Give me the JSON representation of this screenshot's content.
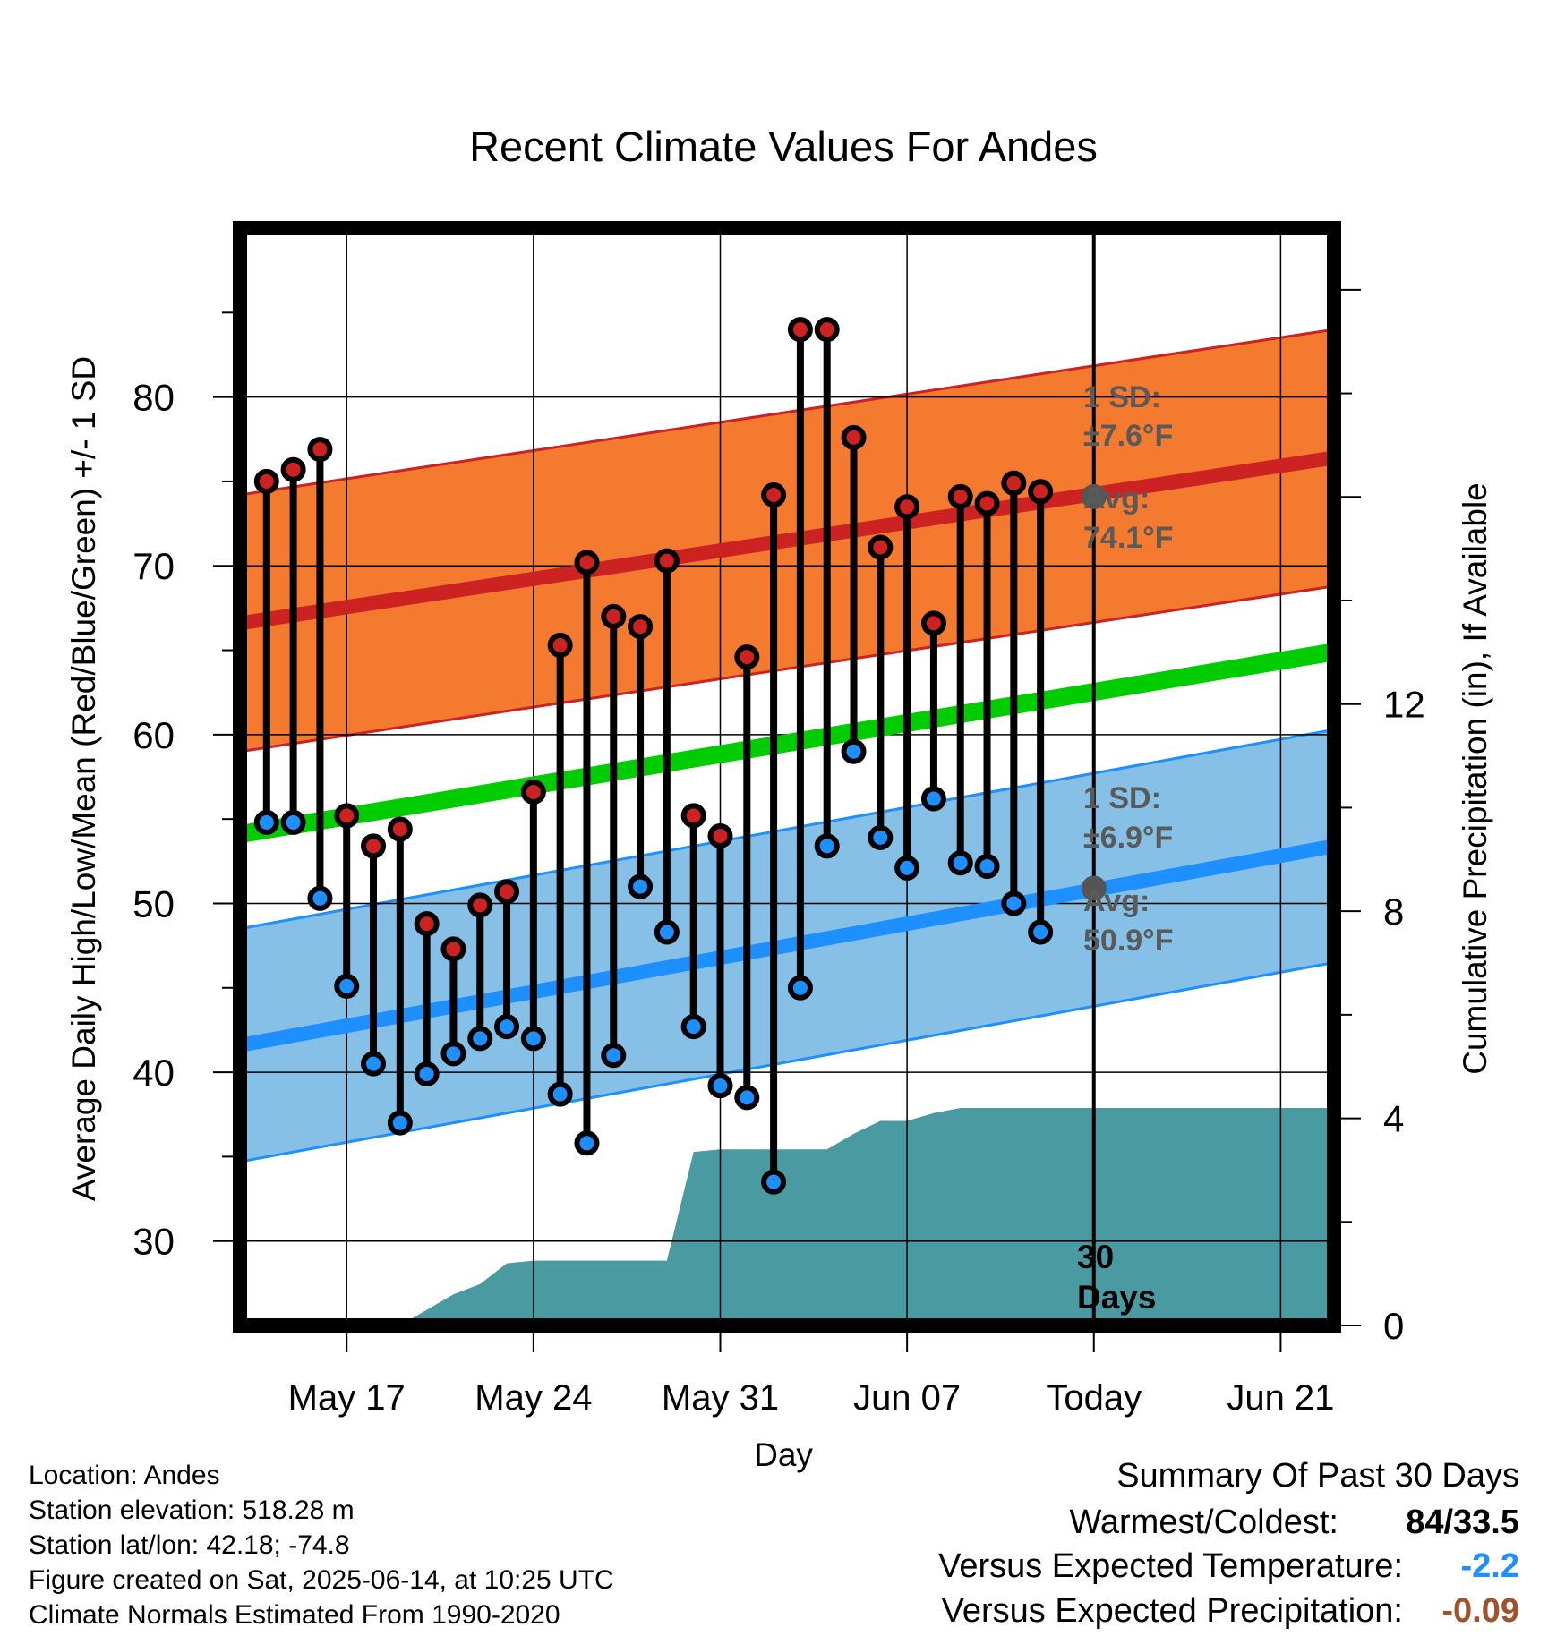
{
  "chart_data": {
    "type": "line",
    "title": "Recent Climate Values For Andes",
    "xlabel": "Day",
    "ylabel": "Average Daily High/Low/Mean (Red/Blue/Green) +/- 1 SD",
    "y2label": "Cumulative Precipitation (in), If Available",
    "ylim": [
      25,
      90
    ],
    "y2lim": [
      0,
      21.19
    ],
    "xlim": [
      "2025-05-13",
      "2025-06-23"
    ],
    "grid": true,
    "x_ticks": [
      {
        "date": "2025-05-17",
        "label": "May 17"
      },
      {
        "date": "2025-05-24",
        "label": "May 24"
      },
      {
        "date": "2025-05-31",
        "label": "May 31"
      },
      {
        "date": "2025-06-07",
        "label": "Jun 07"
      },
      {
        "date": "2025-06-14",
        "label": "Today"
      },
      {
        "date": "2025-06-21",
        "label": "Jun 21"
      }
    ],
    "y_ticks": [
      30,
      40,
      50,
      60,
      70,
      80
    ],
    "y_ticks_labels": [
      "30",
      "40",
      "50",
      "60",
      "70",
      "80"
    ],
    "y2_ticks": [
      0,
      4,
      8,
      12
    ],
    "y2_ticks_labels": [
      "0",
      "4",
      "8",
      "12"
    ],
    "today": "2025-06-14",
    "today_label_line1": "30",
    "today_label_line2": "Days",
    "normal_high": {
      "start": [
        "2025-05-13",
        66.6
      ],
      "end": [
        "2025-06-23",
        76.4
      ],
      "today": 74.1,
      "sd": 7.6,
      "color": "#cc2222",
      "band_color": "#f47a30"
    },
    "normal_low": {
      "start": [
        "2025-05-13",
        41.6
      ],
      "end": [
        "2025-06-23",
        53.4
      ],
      "today": 50.9,
      "sd": 6.9,
      "color": "#1e8fff",
      "band_color": "#86c0e6"
    },
    "normal_mean": {
      "start": [
        "2025-05-13",
        54.1
      ],
      "end": [
        "2025-06-23",
        64.9
      ],
      "color": "#00cc00"
    },
    "high_annotation": {
      "sd_line1": "1 SD:",
      "sd_line2": "±7.6°F",
      "avg_line1": "Avg:",
      "avg_line2": "74.1°F"
    },
    "low_annotation": {
      "sd_line1": "1 SD:",
      "sd_line2": "±6.9°F",
      "avg_line1": "Avg:",
      "avg_line2": "50.9°F"
    },
    "daily": [
      {
        "date": "2025-05-14",
        "high": 75.0,
        "low": 54.8
      },
      {
        "date": "2025-05-15",
        "high": 75.7,
        "low": 54.8
      },
      {
        "date": "2025-05-16",
        "high": 76.9,
        "low": 50.3
      },
      {
        "date": "2025-05-17",
        "high": 55.2,
        "low": 45.1
      },
      {
        "date": "2025-05-18",
        "high": 53.4,
        "low": 40.5
      },
      {
        "date": "2025-05-19",
        "high": 54.4,
        "low": 37.0
      },
      {
        "date": "2025-05-20",
        "high": 48.8,
        "low": 39.9
      },
      {
        "date": "2025-05-21",
        "high": 47.3,
        "low": 41.1
      },
      {
        "date": "2025-05-22",
        "high": 49.9,
        "low": 42.0
      },
      {
        "date": "2025-05-23",
        "high": 50.7,
        "low": 42.7
      },
      {
        "date": "2025-05-24",
        "high": 56.6,
        "low": 42.0
      },
      {
        "date": "2025-05-25",
        "high": 65.3,
        "low": 38.7
      },
      {
        "date": "2025-05-26",
        "high": 70.2,
        "low": 35.8
      },
      {
        "date": "2025-05-27",
        "high": 67.0,
        "low": 41.0
      },
      {
        "date": "2025-05-28",
        "high": 66.4,
        "low": 51.0
      },
      {
        "date": "2025-05-29",
        "high": 70.3,
        "low": 48.3
      },
      {
        "date": "2025-05-30",
        "high": 55.2,
        "low": 42.7
      },
      {
        "date": "2025-05-31",
        "high": 54.0,
        "low": 39.2
      },
      {
        "date": "2025-06-01",
        "high": 64.6,
        "low": 38.5
      },
      {
        "date": "2025-06-02",
        "high": 74.2,
        "low": 33.5
      },
      {
        "date": "2025-06-03",
        "high": 84.0,
        "low": 45.0
      },
      {
        "date": "2025-06-04",
        "high": 84.0,
        "low": 53.4
      },
      {
        "date": "2025-06-05",
        "high": 77.6,
        "low": 59.0
      },
      {
        "date": "2025-06-06",
        "high": 71.1,
        "low": 53.9
      },
      {
        "date": "2025-06-07",
        "high": 73.5,
        "low": 52.1
      },
      {
        "date": "2025-06-08",
        "high": 66.6,
        "low": 56.2
      },
      {
        "date": "2025-06-09",
        "high": 74.1,
        "low": 52.4
      },
      {
        "date": "2025-06-10",
        "high": 73.7,
        "low": 52.2
      },
      {
        "date": "2025-06-11",
        "high": 74.9,
        "low": 50.0
      },
      {
        "date": "2025-06-12",
        "high": 74.4,
        "low": 48.3
      }
    ],
    "precip_cumulative": [
      {
        "date": "2025-05-13",
        "value": 0.0
      },
      {
        "date": "2025-05-19",
        "value": 0.0
      },
      {
        "date": "2025-05-20",
        "value": 0.3
      },
      {
        "date": "2025-05-21",
        "value": 0.6
      },
      {
        "date": "2025-05-22",
        "value": 0.8
      },
      {
        "date": "2025-05-23",
        "value": 1.2
      },
      {
        "date": "2025-05-24",
        "value": 1.25
      },
      {
        "date": "2025-05-29",
        "value": 1.25
      },
      {
        "date": "2025-05-30",
        "value": 3.35
      },
      {
        "date": "2025-05-31",
        "value": 3.4
      },
      {
        "date": "2025-06-04",
        "value": 3.4
      },
      {
        "date": "2025-06-05",
        "value": 3.7
      },
      {
        "date": "2025-06-06",
        "value": 3.95
      },
      {
        "date": "2025-06-07",
        "value": 3.95
      },
      {
        "date": "2025-06-08",
        "value": 4.1
      },
      {
        "date": "2025-06-09",
        "value": 4.2
      },
      {
        "date": "2025-06-23",
        "value": 4.2
      }
    ],
    "precip_color": "#4a9aa2"
  },
  "info": {
    "location": "Location: Andes",
    "elevation": "Station elevation: 518.28 m",
    "latlon": "Station lat/lon: 42.18; -74.8",
    "created": "Figure created on Sat, 2025-06-14, at 10:25 UTC",
    "normals": "Climate Normals Estimated From 1990-2020"
  },
  "summary": {
    "title": "Summary Of Past 30 Days",
    "warmest_label": "Warmest/Coldest:",
    "warmest_value": "84/33.5",
    "temp_label": "Versus Expected Temperature:",
    "temp_value": "-2.2",
    "temp_color": "#1e8fff",
    "precip_label": "Versus Expected Precipitation:",
    "precip_value": "-0.09",
    "precip_color": "#a0522d"
  }
}
